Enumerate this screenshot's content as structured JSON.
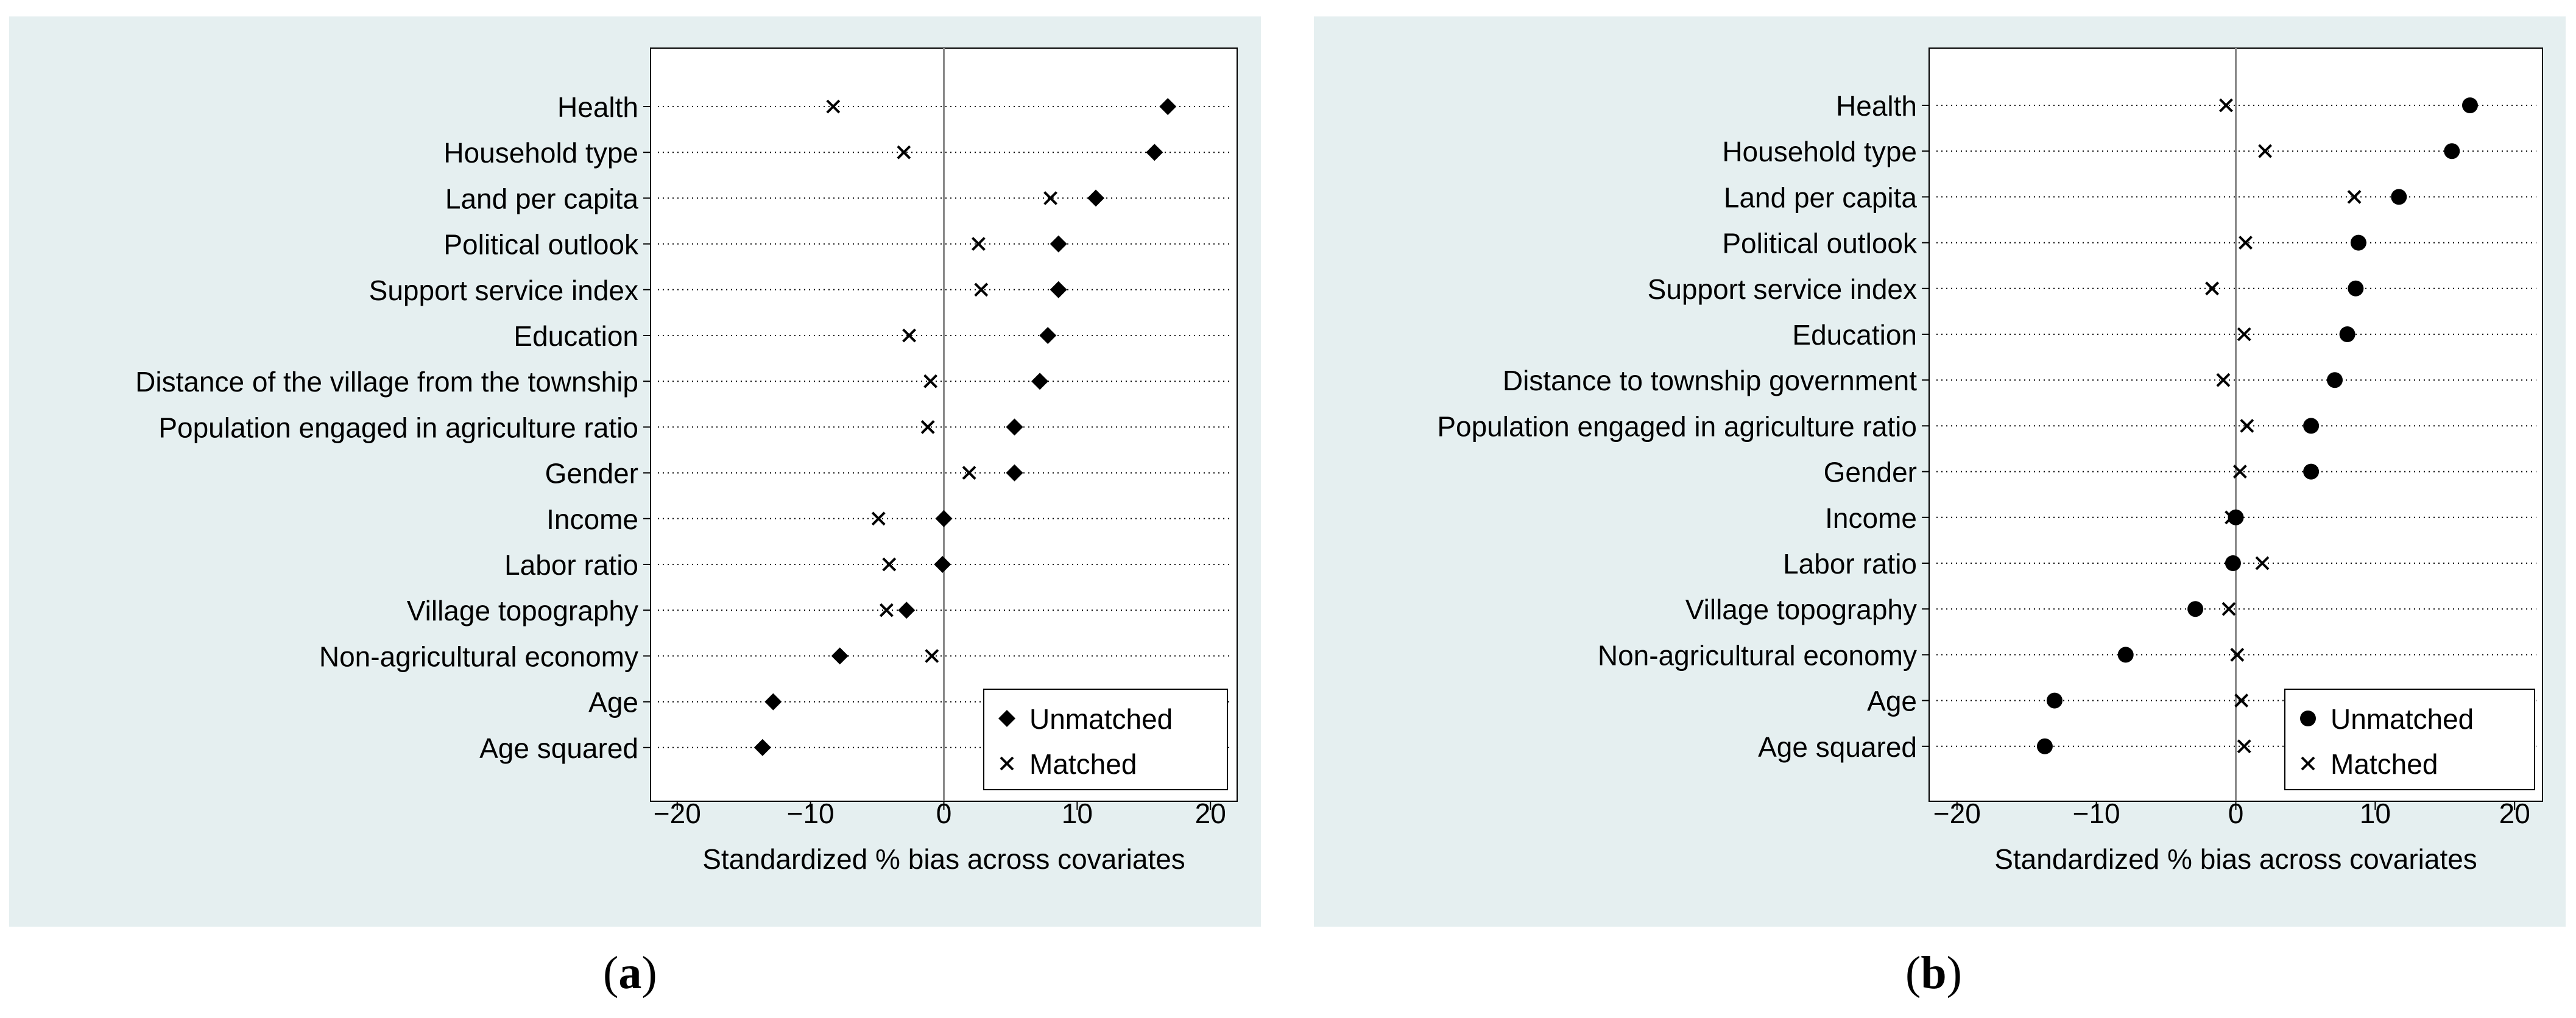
{
  "captions": {
    "a_open": "(",
    "a_letter": "a",
    "a_close": ")",
    "b_open": "(",
    "b_letter": "b",
    "b_close": ")"
  },
  "colors": {
    "panel_bg": "#e5eff0",
    "plot_bg": "#ffffff",
    "marker": "#000000",
    "zero_line": "#888888"
  },
  "chart_data": [
    {
      "panel": "a",
      "type": "scatter",
      "xlabel": "Standardized % bias across covariates",
      "xlim": [
        -22,
        22
      ],
      "xticks": [
        -20,
        -10,
        0,
        10,
        20
      ],
      "xtick_labels": [
        "−20",
        "−10",
        "0",
        "10",
        "20"
      ],
      "grid": "horizontal dotted",
      "legend_position": "bottom-right",
      "categories": [
        "Health",
        "Household type",
        "Land per capita",
        "Political outlook",
        "Support service index",
        "Education",
        "Distance of the village from the township",
        "Population engaged in agriculture ratio",
        "Gender",
        "Income",
        "Labor ratio",
        "Village topography",
        "Non-agricultural economy",
        "Age",
        "Age squared"
      ],
      "series": [
        {
          "name": "Unmatched",
          "marker": "diamond",
          "values": [
            16.8,
            15.8,
            11.4,
            8.6,
            8.6,
            7.8,
            7.2,
            5.3,
            5.3,
            0.0,
            -0.1,
            -2.8,
            -7.8,
            -12.8,
            -13.6
          ]
        },
        {
          "name": "Matched",
          "marker": "x",
          "values": [
            -8.3,
            -3.0,
            8.0,
            2.6,
            2.8,
            -2.6,
            -1.0,
            -1.2,
            1.9,
            -4.9,
            -4.1,
            -4.3,
            -0.9,
            null,
            null
          ]
        }
      ]
    },
    {
      "panel": "b",
      "type": "scatter",
      "xlabel": "Standardized % bias across covariates",
      "xlim": [
        -22,
        22
      ],
      "xticks": [
        -20,
        -10,
        0,
        10,
        20
      ],
      "xtick_labels": [
        "−20",
        "−10",
        "0",
        "10",
        "20"
      ],
      "grid": "horizontal dotted",
      "legend_position": "bottom-right",
      "categories": [
        "Health",
        "Household type",
        "Land per capita",
        "Political outlook",
        "Support service index",
        "Education",
        "Distance to township government",
        "Population engaged in agriculture ratio",
        "Gender",
        "Income",
        "Labor ratio",
        "Village topography",
        "Non-agricultural economy",
        "Age",
        "Age squared"
      ],
      "series": [
        {
          "name": "Unmatched",
          "marker": "circle",
          "values": [
            16.8,
            15.5,
            11.7,
            8.8,
            8.6,
            8.0,
            7.1,
            5.4,
            5.4,
            0.0,
            -0.2,
            -2.9,
            -7.9,
            -13.0,
            -13.7
          ]
        },
        {
          "name": "Matched",
          "marker": "x",
          "values": [
            -0.7,
            2.1,
            8.5,
            0.7,
            -1.7,
            0.6,
            -0.9,
            0.8,
            0.3,
            -0.3,
            1.9,
            -0.5,
            0.1,
            0.4,
            0.6
          ]
        }
      ]
    }
  ]
}
